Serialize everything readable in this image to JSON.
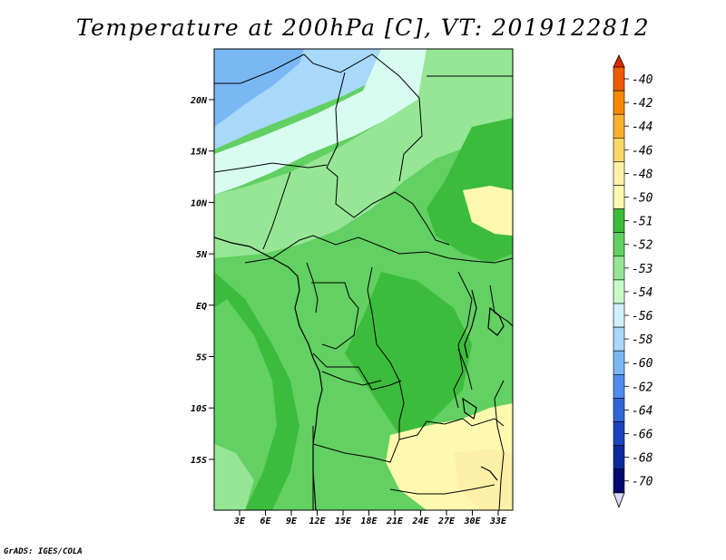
{
  "title": "Temperature at 200hPa [C], VT: 2019122812",
  "credit": "GrADS: IGES/COLA",
  "map": {
    "lat_ticks": [
      "20N",
      "15N",
      "10N",
      "5N",
      "EQ",
      "5S",
      "10S",
      "15S"
    ],
    "lon_ticks": [
      "3E",
      "6E",
      "9E",
      "12E",
      "15E",
      "18E",
      "21E",
      "24E",
      "27E",
      "30E",
      "33E"
    ]
  },
  "legend": {
    "labels": [
      "-40",
      "-42",
      "-44",
      "-46",
      "-48",
      "-50",
      "-51",
      "-52",
      "-53",
      "-54",
      "-56",
      "-58",
      "-60",
      "-62",
      "-64",
      "-66",
      "-68",
      "-70"
    ],
    "colors": [
      "#e02800",
      "#f05a00",
      "#f58a00",
      "#f8b030",
      "#fbd868",
      "#fff0a8",
      "#fdfab0",
      "#3cbc3c",
      "#62d062",
      "#96e696",
      "#c8fac8",
      "#d0f0ff",
      "#a8d8fa",
      "#7ab8f5",
      "#508ceb",
      "#3066d6",
      "#1a44bd",
      "#0a2a9a",
      "#000a6e",
      "#dcdcfa"
    ]
  }
}
